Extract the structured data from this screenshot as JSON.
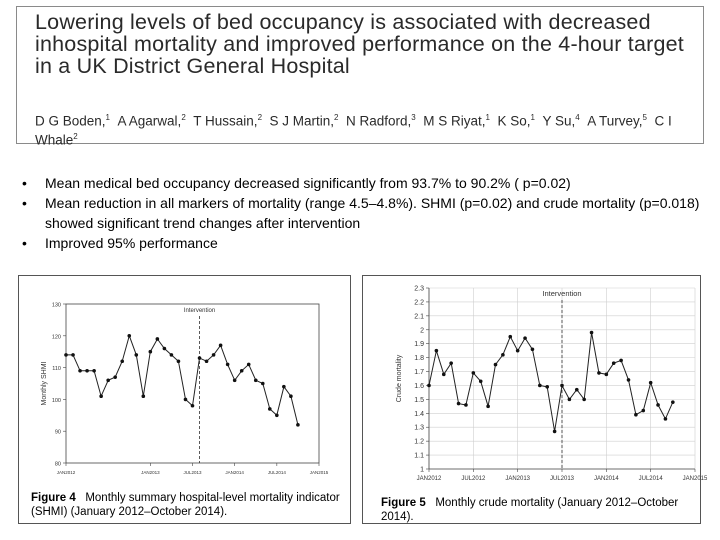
{
  "paper": {
    "title": "Lowering levels of bed occupancy is associated with decreased inhospital mortality and improved performance on the 4-hour target in a UK District General Hospital",
    "authors": [
      {
        "name": "D G Boden,",
        "sup": "1"
      },
      {
        "name": "A Agarwal,",
        "sup": "2"
      },
      {
        "name": "T Hussain,",
        "sup": "2"
      },
      {
        "name": "S J Martin,",
        "sup": "2"
      },
      {
        "name": "N Radford,",
        "sup": "3"
      },
      {
        "name": "M S Riyat,",
        "sup": "1"
      },
      {
        "name": "K So,",
        "sup": "1"
      },
      {
        "name": "Y Su,",
        "sup": "4"
      },
      {
        "name": "A Turvey,",
        "sup": "5"
      },
      {
        "name": "C I Whale",
        "sup": "2"
      }
    ]
  },
  "bullets": [
    "Mean medical bed occupancy decreased significantly from 93.7% to 90.2% ( p=0.02)",
    "Mean reduction in all markers of mortality (range 4.5–4.8%). SHMI (p=0.02) and crude mortality (p=0.018) showed significant trend changes after intervention",
    "Improved 95% performance"
  ],
  "bullet_glyph": "•",
  "figures": {
    "fig4": {
      "label": "Figure 4",
      "caption": "Monthly summary hospital-level mortality indicator (SHMI) (January 2012–October 2014)."
    },
    "fig5": {
      "label": "Figure 5",
      "caption": "Monthly crude mortality (January 2012–October 2014)."
    }
  },
  "chart_data": [
    {
      "type": "line",
      "title": "",
      "annotation": "Intervention",
      "xlabel": "",
      "ylabel": "Monthly SHMI",
      "ylim": [
        80,
        130
      ],
      "yticks": [
        80,
        90,
        100,
        110,
        120,
        130
      ],
      "x_tick_labels": [
        "JAN2012",
        "JAN2013",
        "JUL2013",
        "JAN2014",
        "JUL2014",
        "JAN2015"
      ],
      "x_tick_month_index": [
        0,
        12,
        18,
        24,
        30,
        36
      ],
      "intervention_month_index": 19,
      "grid": false,
      "months": [
        "Jan 2012",
        "Feb 2012",
        "Mar 2012",
        "Apr 2012",
        "May 2012",
        "Jun 2012",
        "Jul 2012",
        "Aug 2012",
        "Sep 2012",
        "Oct 2012",
        "Nov 2012",
        "Dec 2012",
        "Jan 2013",
        "Feb 2013",
        "Mar 2013",
        "Apr 2013",
        "May 2013",
        "Jun 2013",
        "Jul 2013",
        "Aug 2013",
        "Sep 2013",
        "Oct 2013",
        "Nov 2013",
        "Dec 2013",
        "Jan 2014",
        "Feb 2014",
        "Mar 2014",
        "Apr 2014",
        "May 2014",
        "Jun 2014",
        "Jul 2014",
        "Aug 2014",
        "Sep 2014",
        "Oct 2014"
      ],
      "values": [
        114,
        114,
        109,
        109,
        109,
        101,
        106,
        107,
        112,
        120,
        114,
        101,
        115,
        119,
        116,
        114,
        112,
        100,
        98,
        113,
        112,
        114,
        117,
        111,
        106,
        109,
        111,
        106,
        105,
        97,
        95,
        104,
        101,
        92
      ]
    },
    {
      "type": "line",
      "title": "",
      "annotation": "Intervention",
      "xlabel": "",
      "ylabel": "Crude mortality",
      "ylim": [
        1,
        2.3
      ],
      "yticks": [
        1,
        1.1,
        1.2,
        1.3,
        1.4,
        1.5,
        1.6,
        1.7,
        1.8,
        1.9,
        2,
        2.1,
        2.2,
        2.3
      ],
      "x_tick_labels": [
        "JAN2012",
        "JUL2012",
        "JAN2013",
        "JUL2013",
        "JAN2014",
        "JUL2014",
        "JAN2015"
      ],
      "x_tick_month_index": [
        0,
        6,
        12,
        18,
        24,
        30,
        36
      ],
      "intervention_month_index": 18,
      "grid": true,
      "months": [
        "Jan 2012",
        "Feb 2012",
        "Mar 2012",
        "Apr 2012",
        "May 2012",
        "Jun 2012",
        "Jul 2012",
        "Aug 2012",
        "Sep 2012",
        "Oct 2012",
        "Nov 2012",
        "Dec 2012",
        "Jan 2013",
        "Feb 2013",
        "Mar 2013",
        "Apr 2013",
        "May 2013",
        "Jun 2013",
        "Jul 2013",
        "Aug 2013",
        "Sep 2013",
        "Oct 2013",
        "Nov 2013",
        "Dec 2013",
        "Jan 2014",
        "Feb 2014",
        "Mar 2014",
        "Apr 2014",
        "May 2014",
        "Jun 2014",
        "Jul 2014",
        "Aug 2014",
        "Sep 2014",
        "Oct 2014"
      ],
      "values": [
        1.6,
        1.85,
        1.68,
        1.76,
        1.47,
        1.46,
        1.69,
        1.63,
        1.45,
        1.75,
        1.82,
        1.95,
        1.85,
        1.94,
        1.86,
        1.6,
        1.59,
        1.27,
        1.6,
        1.5,
        1.57,
        1.5,
        1.98,
        1.69,
        1.68,
        1.76,
        1.78,
        1.64,
        1.39,
        1.42,
        1.62,
        1.46,
        1.36,
        1.48
      ]
    }
  ]
}
